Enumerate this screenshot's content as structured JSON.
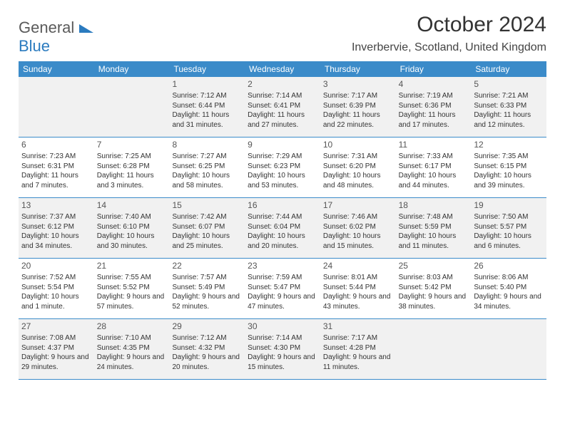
{
  "logo": {
    "part1": "General",
    "part2": "Blue"
  },
  "title": "October 2024",
  "location": "Inverbervie, Scotland, United Kingdom",
  "colors": {
    "header_bg": "#3b8bc9",
    "header_text": "#ffffff",
    "shaded_bg": "#f1f1f1",
    "logo_gray": "#5a5a5a",
    "logo_blue": "#2b7bbf",
    "border": "#3b8bc9"
  },
  "day_headers": [
    "Sunday",
    "Monday",
    "Tuesday",
    "Wednesday",
    "Thursday",
    "Friday",
    "Saturday"
  ],
  "weeks": [
    [
      {
        "num": "",
        "sunrise": "",
        "sunset": "",
        "daylight": "",
        "shaded": true
      },
      {
        "num": "",
        "sunrise": "",
        "sunset": "",
        "daylight": "",
        "shaded": true
      },
      {
        "num": "1",
        "sunrise": "Sunrise: 7:12 AM",
        "sunset": "Sunset: 6:44 PM",
        "daylight": "Daylight: 11 hours and 31 minutes.",
        "shaded": true
      },
      {
        "num": "2",
        "sunrise": "Sunrise: 7:14 AM",
        "sunset": "Sunset: 6:41 PM",
        "daylight": "Daylight: 11 hours and 27 minutes.",
        "shaded": true
      },
      {
        "num": "3",
        "sunrise": "Sunrise: 7:17 AM",
        "sunset": "Sunset: 6:39 PM",
        "daylight": "Daylight: 11 hours and 22 minutes.",
        "shaded": true
      },
      {
        "num": "4",
        "sunrise": "Sunrise: 7:19 AM",
        "sunset": "Sunset: 6:36 PM",
        "daylight": "Daylight: 11 hours and 17 minutes.",
        "shaded": true
      },
      {
        "num": "5",
        "sunrise": "Sunrise: 7:21 AM",
        "sunset": "Sunset: 6:33 PM",
        "daylight": "Daylight: 11 hours and 12 minutes.",
        "shaded": true
      }
    ],
    [
      {
        "num": "6",
        "sunrise": "Sunrise: 7:23 AM",
        "sunset": "Sunset: 6:31 PM",
        "daylight": "Daylight: 11 hours and 7 minutes.",
        "shaded": false
      },
      {
        "num": "7",
        "sunrise": "Sunrise: 7:25 AM",
        "sunset": "Sunset: 6:28 PM",
        "daylight": "Daylight: 11 hours and 3 minutes.",
        "shaded": false
      },
      {
        "num": "8",
        "sunrise": "Sunrise: 7:27 AM",
        "sunset": "Sunset: 6:25 PM",
        "daylight": "Daylight: 10 hours and 58 minutes.",
        "shaded": false
      },
      {
        "num": "9",
        "sunrise": "Sunrise: 7:29 AM",
        "sunset": "Sunset: 6:23 PM",
        "daylight": "Daylight: 10 hours and 53 minutes.",
        "shaded": false
      },
      {
        "num": "10",
        "sunrise": "Sunrise: 7:31 AM",
        "sunset": "Sunset: 6:20 PM",
        "daylight": "Daylight: 10 hours and 48 minutes.",
        "shaded": false
      },
      {
        "num": "11",
        "sunrise": "Sunrise: 7:33 AM",
        "sunset": "Sunset: 6:17 PM",
        "daylight": "Daylight: 10 hours and 44 minutes.",
        "shaded": false
      },
      {
        "num": "12",
        "sunrise": "Sunrise: 7:35 AM",
        "sunset": "Sunset: 6:15 PM",
        "daylight": "Daylight: 10 hours and 39 minutes.",
        "shaded": false
      }
    ],
    [
      {
        "num": "13",
        "sunrise": "Sunrise: 7:37 AM",
        "sunset": "Sunset: 6:12 PM",
        "daylight": "Daylight: 10 hours and 34 minutes.",
        "shaded": true
      },
      {
        "num": "14",
        "sunrise": "Sunrise: 7:40 AM",
        "sunset": "Sunset: 6:10 PM",
        "daylight": "Daylight: 10 hours and 30 minutes.",
        "shaded": true
      },
      {
        "num": "15",
        "sunrise": "Sunrise: 7:42 AM",
        "sunset": "Sunset: 6:07 PM",
        "daylight": "Daylight: 10 hours and 25 minutes.",
        "shaded": true
      },
      {
        "num": "16",
        "sunrise": "Sunrise: 7:44 AM",
        "sunset": "Sunset: 6:04 PM",
        "daylight": "Daylight: 10 hours and 20 minutes.",
        "shaded": true
      },
      {
        "num": "17",
        "sunrise": "Sunrise: 7:46 AM",
        "sunset": "Sunset: 6:02 PM",
        "daylight": "Daylight: 10 hours and 15 minutes.",
        "shaded": true
      },
      {
        "num": "18",
        "sunrise": "Sunrise: 7:48 AM",
        "sunset": "Sunset: 5:59 PM",
        "daylight": "Daylight: 10 hours and 11 minutes.",
        "shaded": true
      },
      {
        "num": "19",
        "sunrise": "Sunrise: 7:50 AM",
        "sunset": "Sunset: 5:57 PM",
        "daylight": "Daylight: 10 hours and 6 minutes.",
        "shaded": true
      }
    ],
    [
      {
        "num": "20",
        "sunrise": "Sunrise: 7:52 AM",
        "sunset": "Sunset: 5:54 PM",
        "daylight": "Daylight: 10 hours and 1 minute.",
        "shaded": false
      },
      {
        "num": "21",
        "sunrise": "Sunrise: 7:55 AM",
        "sunset": "Sunset: 5:52 PM",
        "daylight": "Daylight: 9 hours and 57 minutes.",
        "shaded": false
      },
      {
        "num": "22",
        "sunrise": "Sunrise: 7:57 AM",
        "sunset": "Sunset: 5:49 PM",
        "daylight": "Daylight: 9 hours and 52 minutes.",
        "shaded": false
      },
      {
        "num": "23",
        "sunrise": "Sunrise: 7:59 AM",
        "sunset": "Sunset: 5:47 PM",
        "daylight": "Daylight: 9 hours and 47 minutes.",
        "shaded": false
      },
      {
        "num": "24",
        "sunrise": "Sunrise: 8:01 AM",
        "sunset": "Sunset: 5:44 PM",
        "daylight": "Daylight: 9 hours and 43 minutes.",
        "shaded": false
      },
      {
        "num": "25",
        "sunrise": "Sunrise: 8:03 AM",
        "sunset": "Sunset: 5:42 PM",
        "daylight": "Daylight: 9 hours and 38 minutes.",
        "shaded": false
      },
      {
        "num": "26",
        "sunrise": "Sunrise: 8:06 AM",
        "sunset": "Sunset: 5:40 PM",
        "daylight": "Daylight: 9 hours and 34 minutes.",
        "shaded": false
      }
    ],
    [
      {
        "num": "27",
        "sunrise": "Sunrise: 7:08 AM",
        "sunset": "Sunset: 4:37 PM",
        "daylight": "Daylight: 9 hours and 29 minutes.",
        "shaded": true
      },
      {
        "num": "28",
        "sunrise": "Sunrise: 7:10 AM",
        "sunset": "Sunset: 4:35 PM",
        "daylight": "Daylight: 9 hours and 24 minutes.",
        "shaded": true
      },
      {
        "num": "29",
        "sunrise": "Sunrise: 7:12 AM",
        "sunset": "Sunset: 4:32 PM",
        "daylight": "Daylight: 9 hours and 20 minutes.",
        "shaded": true
      },
      {
        "num": "30",
        "sunrise": "Sunrise: 7:14 AM",
        "sunset": "Sunset: 4:30 PM",
        "daylight": "Daylight: 9 hours and 15 minutes.",
        "shaded": true
      },
      {
        "num": "31",
        "sunrise": "Sunrise: 7:17 AM",
        "sunset": "Sunset: 4:28 PM",
        "daylight": "Daylight: 9 hours and 11 minutes.",
        "shaded": true
      },
      {
        "num": "",
        "sunrise": "",
        "sunset": "",
        "daylight": "",
        "shaded": true
      },
      {
        "num": "",
        "sunrise": "",
        "sunset": "",
        "daylight": "",
        "shaded": true
      }
    ]
  ]
}
